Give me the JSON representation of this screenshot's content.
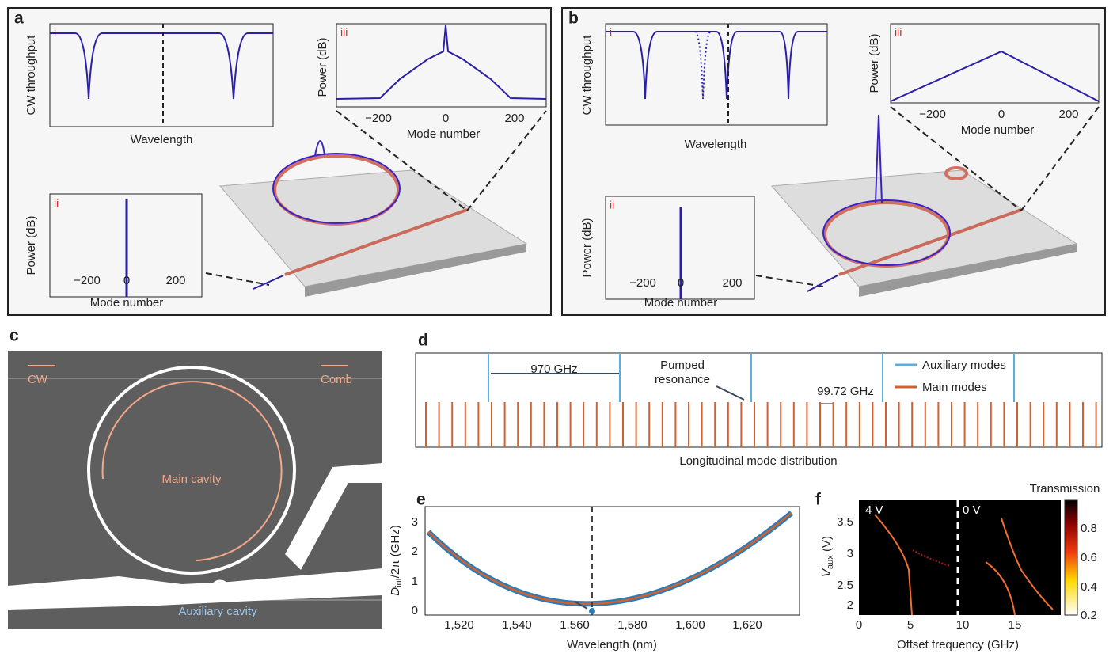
{
  "panels": {
    "a": {
      "label": "a",
      "i": {
        "tag": "i",
        "ylabel": "CW throughput",
        "xlabel": "Wavelength"
      },
      "ii": {
        "tag": "ii",
        "ylabel": "Power (dB)",
        "xlabel": "Mode number",
        "xticks": [
          "−200",
          "0",
          "200"
        ]
      },
      "iii": {
        "tag": "iii",
        "ylabel": "Power (dB)",
        "xlabel": "Mode number",
        "xticks": [
          "−200",
          "0",
          "200"
        ]
      }
    },
    "b": {
      "label": "b",
      "i": {
        "tag": "i",
        "ylabel": "CW throughput",
        "xlabel": "Wavelength"
      },
      "ii": {
        "tag": "ii",
        "ylabel": "Power (dB)",
        "xlabel": "Mode number",
        "xticks": [
          "−200",
          "0",
          "200"
        ]
      },
      "iii": {
        "tag": "iii",
        "ylabel": "Power (dB)",
        "xlabel": "Mode number",
        "xticks": [
          "−200",
          "0",
          "200"
        ]
      }
    },
    "c": {
      "label": "c",
      "cw": "CW",
      "comb": "Comb",
      "main": "Main cavity",
      "aux": "Auxiliary cavity"
    },
    "d": {
      "label": "d",
      "spacing_large": "970 GHz",
      "pumped": [
        "Pumped",
        "resonance"
      ],
      "spacing_small": "99.72 GHz",
      "legend": [
        "Auxiliary modes",
        "Main modes"
      ],
      "xlabel": "Longitudinal mode distribution"
    },
    "e": {
      "label": "e",
      "ylabel": [
        "D",
        "int",
        "/2π (GHz)"
      ],
      "xlabel": "Wavelength (nm)",
      "xticks": [
        "1,520",
        "1,540",
        "1,560",
        "1,580",
        "1,600",
        "1,620"
      ],
      "yticks": [
        "0",
        "1",
        "2",
        "3"
      ]
    },
    "f": {
      "label": "f",
      "ylabel": [
        "V",
        "aux",
        " (V)"
      ],
      "xlabel": "Offset frequency (GHz)",
      "xticks": [
        "0",
        "5",
        "10",
        "15"
      ],
      "yticks": [
        "2",
        "2.5",
        "3",
        "3.5"
      ],
      "left": "4 V",
      "right": "0 V",
      "cbar_title": "Transmission",
      "cbar_ticks": [
        "0.2",
        "0.4",
        "0.6",
        "0.8"
      ]
    }
  }
}
